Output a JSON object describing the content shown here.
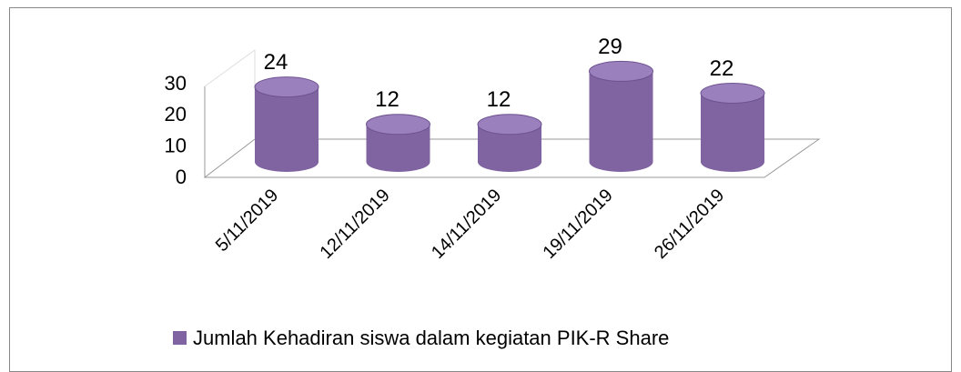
{
  "chart_data": {
    "type": "bar",
    "categories": [
      "5/11/2019",
      "12/11/2019",
      "14/11/2019",
      "19/11/2019",
      "26/11/2019"
    ],
    "series": [
      {
        "name": "Jumlah Kehadiran siswa dalam kegiatan PIK-R Share",
        "color": "#8064a2",
        "values": [
          24,
          12,
          12,
          29,
          22
        ]
      }
    ],
    "ylim": [
      0,
      30
    ],
    "yticks": [
      0,
      10,
      20,
      30
    ],
    "legend": "bottom"
  }
}
